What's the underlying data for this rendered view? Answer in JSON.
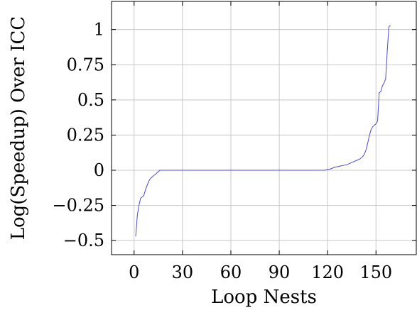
{
  "chart_data": {
    "type": "line",
    "xlabel": "Loop Nests",
    "ylabel": "Log(Speedup) Over ICC",
    "xlim": [
      -14,
      175
    ],
    "ylim": [
      -0.6,
      1.2
    ],
    "x_ticks": [
      0,
      30,
      60,
      90,
      120,
      150
    ],
    "x_tick_labels": [
      "0",
      "30",
      "60",
      "90",
      "120",
      "150"
    ],
    "y_ticks": [
      -0.5,
      -0.25,
      0,
      0.25,
      0.5,
      0.75,
      1
    ],
    "y_tick_labels": [
      "−0.5",
      "−0.25",
      "0",
      "0.25",
      "0.5",
      "0.75",
      "1"
    ],
    "grid": true,
    "line_color": "#4b4bd6",
    "series": [
      {
        "x": [
          1,
          2,
          3,
          4,
          5,
          6,
          7,
          8,
          9,
          10,
          11,
          12,
          13,
          14,
          15,
          16,
          30,
          60,
          90,
          118,
          120,
          122,
          124,
          126,
          128,
          130,
          132,
          134,
          136,
          138,
          140,
          142,
          143,
          144,
          145,
          146,
          147,
          148,
          149,
          150,
          151,
          152,
          153,
          154,
          155,
          156,
          157,
          158,
          159
        ],
        "y": [
          -0.47,
          -0.32,
          -0.25,
          -0.2,
          -0.19,
          -0.18,
          -0.14,
          -0.11,
          -0.08,
          -0.06,
          -0.05,
          -0.04,
          -0.03,
          -0.02,
          -0.01,
          0,
          0,
          0,
          0,
          0,
          0.005,
          0.01,
          0.02,
          0.025,
          0.03,
          0.035,
          0.04,
          0.05,
          0.06,
          0.07,
          0.08,
          0.1,
          0.12,
          0.15,
          0.2,
          0.25,
          0.29,
          0.31,
          0.32,
          0.33,
          0.35,
          0.55,
          0.56,
          0.6,
          0.62,
          0.65,
          0.85,
          1.02,
          1.03
        ]
      }
    ]
  }
}
